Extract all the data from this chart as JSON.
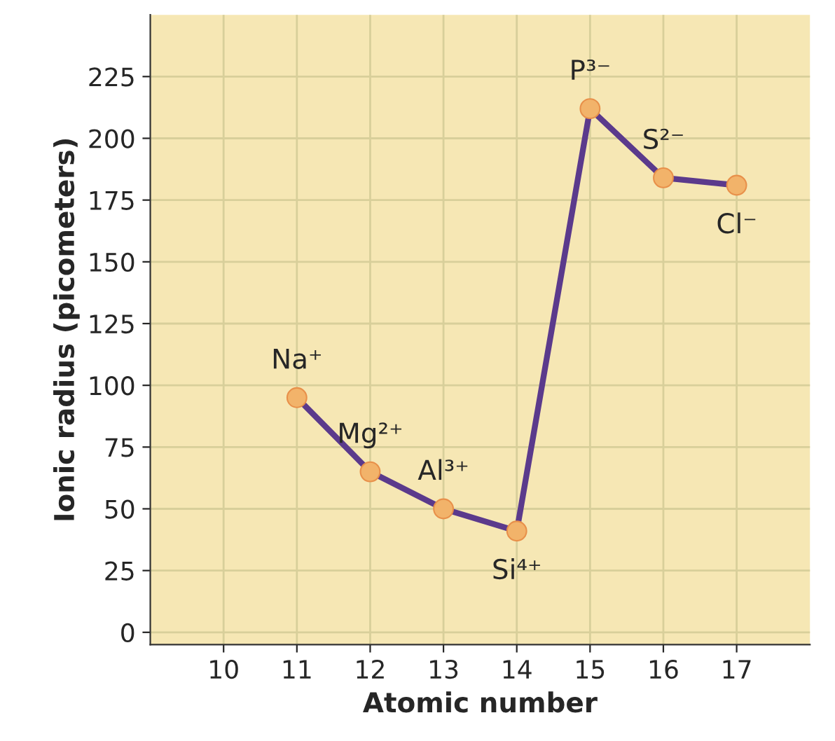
{
  "chart_data": {
    "type": "line",
    "xlabel": "Atomic number",
    "ylabel": "Ionic radius (picometers)",
    "x": [
      11,
      12,
      13,
      14,
      15,
      16,
      17
    ],
    "series": [
      {
        "color": "#5b3a8c",
        "values": [
          95,
          65,
          50,
          41,
          212,
          184,
          181
        ]
      }
    ],
    "marker": "circle",
    "line_style": "solid",
    "grid": true,
    "xlim": [
      9,
      18
    ],
    "xticks": [
      10,
      11,
      12,
      13,
      14,
      15,
      16,
      17
    ],
    "ylim": [
      -5,
      250
    ],
    "yticks": [
      0,
      25,
      50,
      75,
      100,
      125,
      150,
      175,
      200,
      225
    ],
    "annotations": [
      {
        "text": "Na⁺",
        "x": 11,
        "y": 95
      },
      {
        "text": "Mg²⁺",
        "x": 12,
        "y": 65
      },
      {
        "text": "Al³⁺",
        "x": 13,
        "y": 50
      },
      {
        "text": "Si⁴⁺",
        "x": 14,
        "y": 41
      },
      {
        "text": "P³⁻",
        "x": 15,
        "y": 212
      },
      {
        "text": "S²⁻",
        "x": 16,
        "y": 184
      },
      {
        "text": "Cl⁻",
        "x": 17,
        "y": 181
      }
    ]
  }
}
